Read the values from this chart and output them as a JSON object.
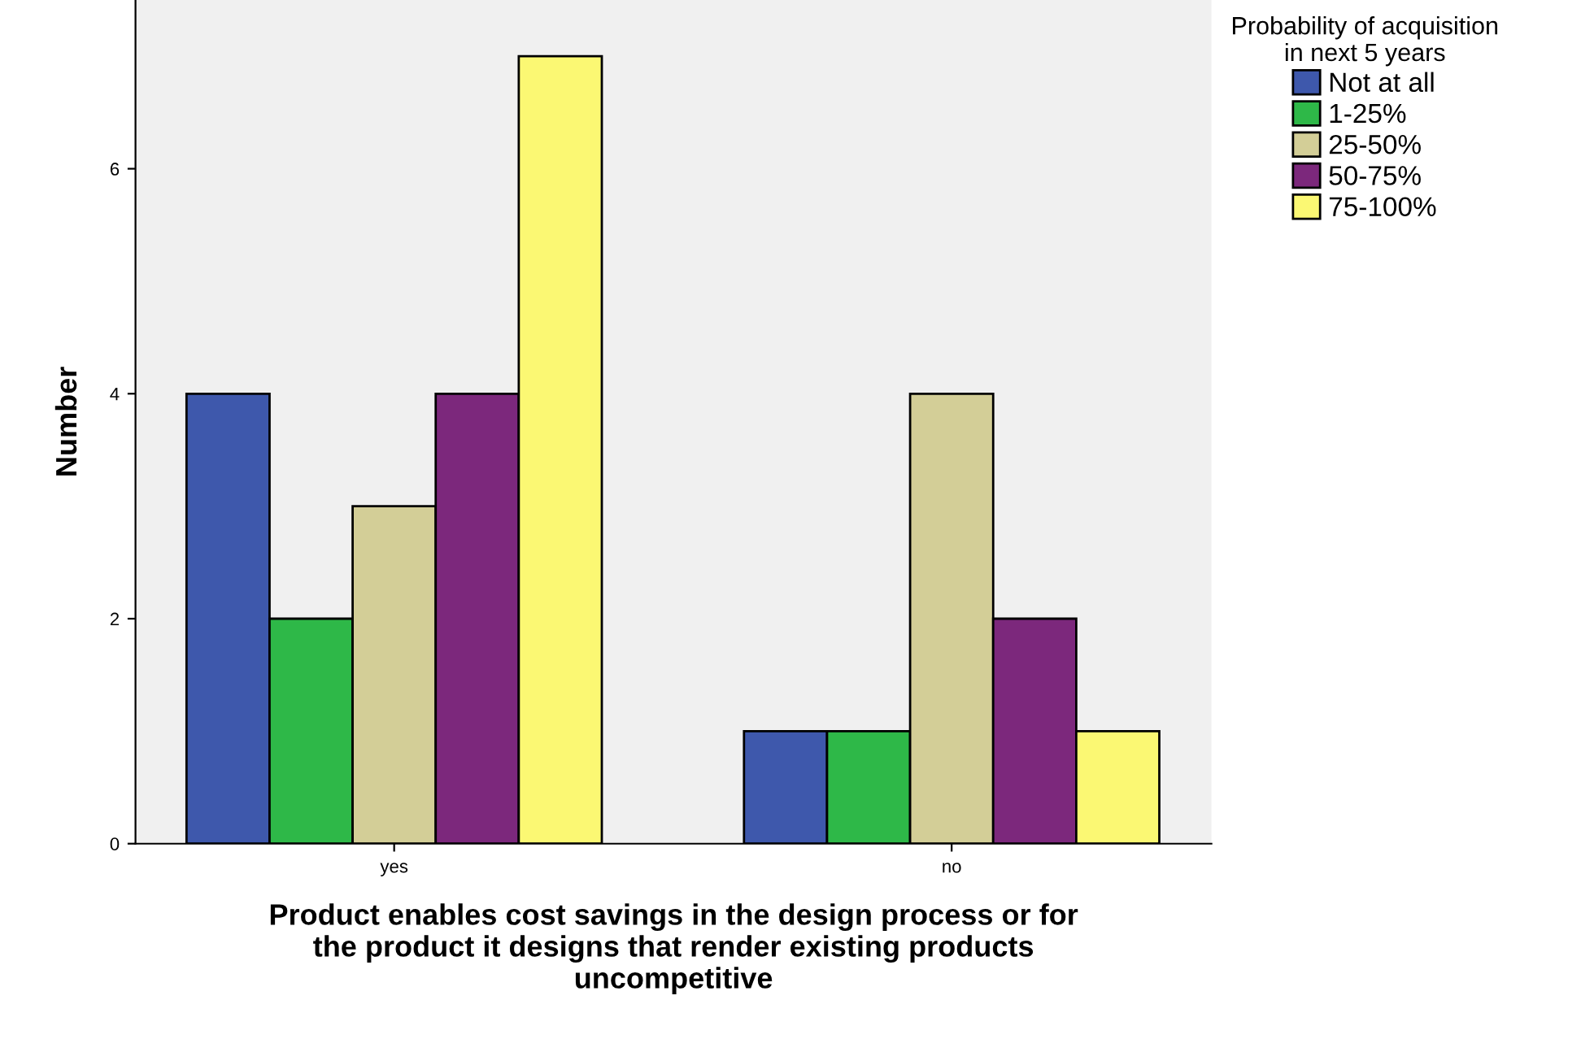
{
  "chart_data": {
    "type": "bar",
    "xlabel": "Product enables cost savings in the design process or for\nthe product it designs that render existing products\nuncompetitive",
    "ylabel": "Number",
    "legend_title": "Probability of acquisition\nin next 5 years",
    "categories": [
      "yes",
      "no"
    ],
    "series": [
      {
        "name": "Not at all",
        "color": "#3e58ac",
        "values": [
          4,
          1
        ]
      },
      {
        "name": "1-25%",
        "color": "#2eb848",
        "values": [
          2,
          1
        ]
      },
      {
        "name": "25-50%",
        "color": "#d3ce97",
        "values": [
          3,
          4
        ]
      },
      {
        "name": "50-75%",
        "color": "#7c287c",
        "values": [
          4,
          2
        ]
      },
      {
        "name": "75-100%",
        "color": "#fbf873",
        "values": [
          7,
          1
        ]
      }
    ],
    "ylim": [
      0,
      7.5
    ],
    "yticks": [
      0,
      2,
      4,
      6
    ],
    "grid": false,
    "legend": "right"
  }
}
